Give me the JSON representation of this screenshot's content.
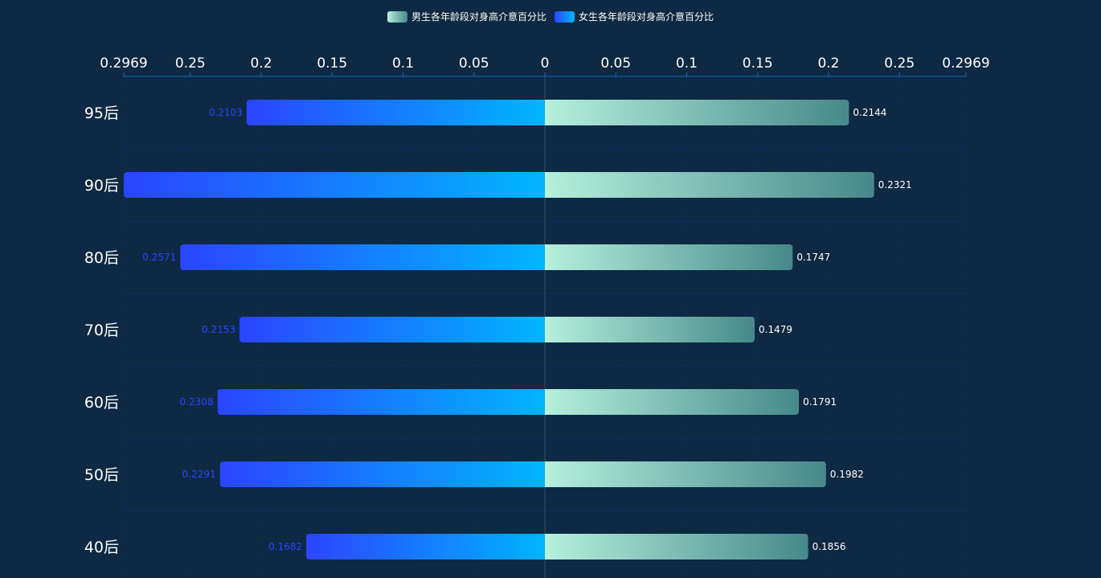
{
  "legend": {
    "male_label": "男生各年龄段对身高介意百分比",
    "female_label": "女生各年龄段对身高介意百分比"
  },
  "colors": {
    "background": "#0d2943",
    "male_start": "#b5f0dc",
    "male_end": "#47898a",
    "female_outer": "#2b45ff",
    "female_inner": "#00b6ff",
    "female_label": "#2b45ff",
    "male_label": "#ffffff",
    "grid": "#0a2f6b",
    "axis_text": "#ffffff"
  },
  "chart_data": {
    "type": "bar",
    "orientation": "horizontal-butterfly",
    "categories": [
      "95后",
      "90后",
      "80后",
      "70后",
      "60后",
      "50后",
      "40后"
    ],
    "series": [
      {
        "name": "男生各年龄段对身高介意百分比",
        "side": "right",
        "values": [
          0.2144,
          0.2321,
          0.1747,
          0.1479,
          0.1791,
          0.1982,
          0.1856
        ]
      },
      {
        "name": "女生各年龄段对身高介意百分比",
        "side": "left",
        "values": [
          0.2103,
          0.2969,
          0.2571,
          0.2153,
          0.2308,
          0.2291,
          0.1682
        ]
      }
    ],
    "female_value_labels": [
      "0.2103",
      "",
      "0.2571",
      "0.2153",
      "0.2308",
      "0.2291",
      "0.1682"
    ],
    "male_value_labels": [
      "0.2144",
      "0.2321",
      "0.1747",
      "0.1479",
      "0.1791",
      "0.1982",
      "0.1856"
    ],
    "x_ticks_left": [
      "0.2969",
      "0.25",
      "0.2",
      "0.15",
      "0.1",
      "0.05",
      "0"
    ],
    "x_ticks_right": [
      "0.05",
      "0.1",
      "0.15",
      "0.2",
      "0.25",
      "0.2969"
    ],
    "xlim": [
      0,
      0.2969
    ],
    "axis_position": "top",
    "legend_position": "top-center",
    "grid": true
  }
}
